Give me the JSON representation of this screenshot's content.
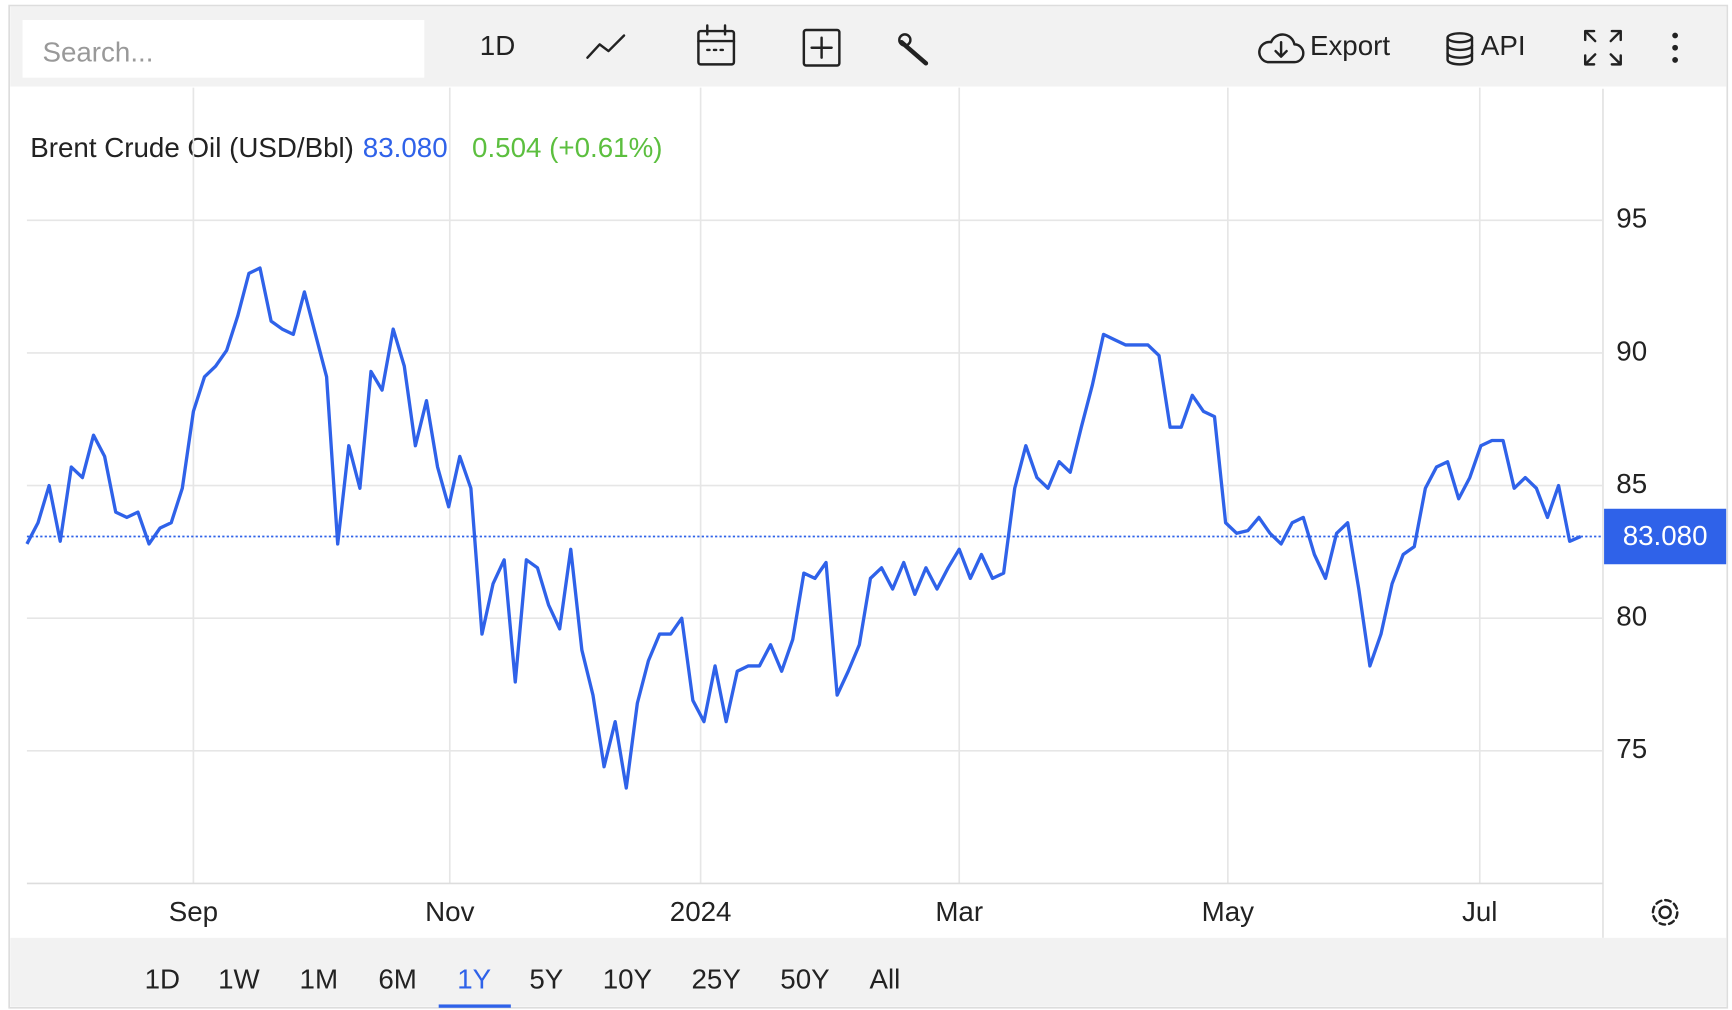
{
  "toolbar": {
    "search_placeholder": "Search...",
    "interval": "1D",
    "export": "Export",
    "api": "API"
  },
  "range_buttons": [
    "1D",
    "1W",
    "1M",
    "6M",
    "1Y",
    "5Y",
    "10Y",
    "25Y",
    "50Y",
    "All"
  ],
  "active_range": "1Y",
  "chart_data": {
    "type": "line",
    "title": "Brent Crude Oil (USD/Bbl)",
    "current": {
      "value": 83.08,
      "label": "83.080"
    },
    "change": "0.504 (+0.61%)",
    "color": "#2f62e9",
    "change_color": "#5cbf3f",
    "grid": true,
    "xlim": [
      0,
      142
    ],
    "xticks": [
      {
        "value": 15,
        "label": "Sep"
      },
      {
        "value": 38.1,
        "label": "Nov"
      },
      {
        "value": 60.7,
        "label": "2024"
      },
      {
        "value": 84,
        "label": "Mar"
      },
      {
        "value": 108.2,
        "label": "May"
      },
      {
        "value": 130.9,
        "label": "Jul"
      }
    ],
    "ylim": [
      70,
      100
    ],
    "yticks": [
      75,
      80,
      85,
      90,
      95
    ],
    "values": [
      82.8,
      83.6,
      85.0,
      82.9,
      85.7,
      85.3,
      86.9,
      86.1,
      84.0,
      83.8,
      84.0,
      82.8,
      83.4,
      83.6,
      84.9,
      87.8,
      89.1,
      89.5,
      90.1,
      91.4,
      93.0,
      93.2,
      91.2,
      90.9,
      90.7,
      92.3,
      90.7,
      89.1,
      82.8,
      86.5,
      84.9,
      89.3,
      88.6,
      90.9,
      89.5,
      86.5,
      88.2,
      85.7,
      84.2,
      86.1,
      84.9,
      79.4,
      81.3,
      82.2,
      77.6,
      82.2,
      81.9,
      80.5,
      79.6,
      82.6,
      78.8,
      77.1,
      74.4,
      76.1,
      73.6,
      76.8,
      78.4,
      79.4,
      79.4,
      80.0,
      76.9,
      76.1,
      78.2,
      76.1,
      78.0,
      78.2,
      78.2,
      79.0,
      78.0,
      79.2,
      81.7,
      81.5,
      82.1,
      77.1,
      78.0,
      79.0,
      81.5,
      81.9,
      81.1,
      82.1,
      80.9,
      81.9,
      81.1,
      81.9,
      82.6,
      81.5,
      82.4,
      81.5,
      81.7,
      84.9,
      86.5,
      85.3,
      84.9,
      85.9,
      85.5,
      87.2,
      88.8,
      90.7,
      90.5,
      90.3,
      90.3,
      90.3,
      89.9,
      87.2,
      87.2,
      88.4,
      87.8,
      87.6,
      83.6,
      83.2,
      83.3,
      83.8,
      83.2,
      82.8,
      83.6,
      83.8,
      82.4,
      81.5,
      83.2,
      83.6,
      81.1,
      78.2,
      79.4,
      81.3,
      82.4,
      82.7,
      84.9,
      85.7,
      85.9,
      84.5,
      85.3,
      86.5,
      86.7,
      86.7,
      84.9,
      85.3,
      84.9,
      83.8,
      85.0,
      82.9,
      83.08
    ]
  }
}
